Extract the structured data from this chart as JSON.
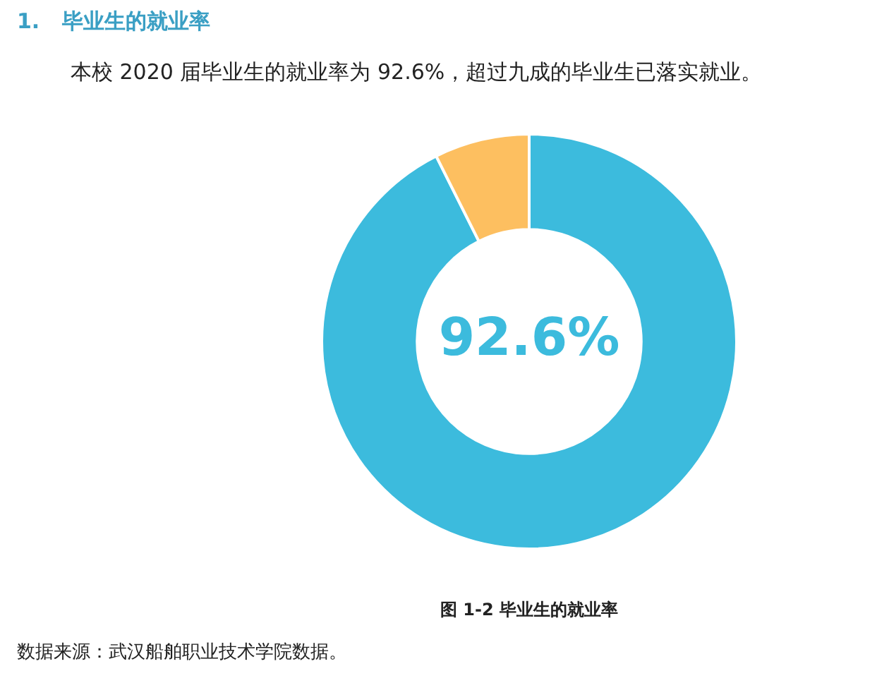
{
  "chart_data": {
    "type": "donut",
    "title": "1.   毕业生的就业率",
    "subtitle": "本校 2020 届毕业生的就业率为 92.6%，超过九成的毕业生已落实就业。",
    "categories": [
      null,
      null
    ],
    "values": [
      92.6,
      7.4
    ],
    "colors": [
      "#3cbbdd",
      "#fdbf60"
    ],
    "value_labels": [
      "92.6%",
      null
    ],
    "legend": false,
    "annotations": [
      "图 1-2 毕业生的就业率",
      "数据来源：武汉船舶职业技术学院数据。"
    ]
  }
}
